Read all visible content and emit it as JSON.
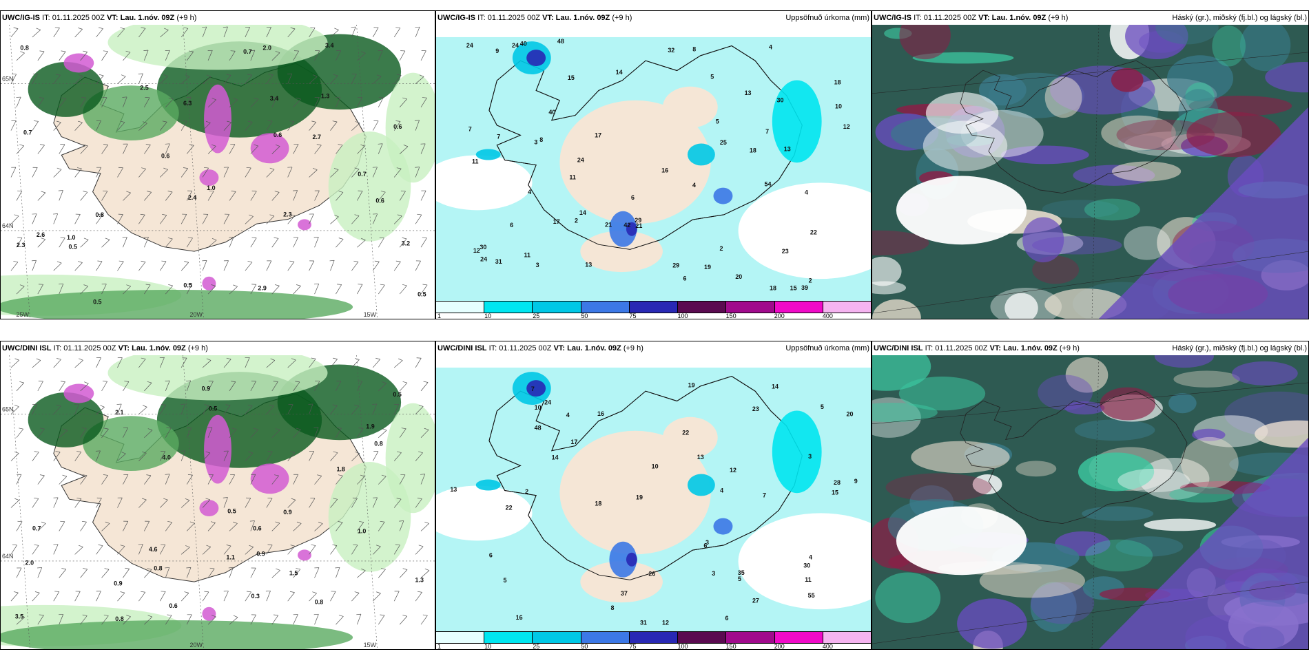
{
  "rows": [
    {
      "model": "UWC/IG-IS",
      "it_label": "IT:",
      "it_value": "01.11.2025 00Z",
      "vt_label": "VT:",
      "vt_value": "Lau. 1.nóv. 09Z",
      "lead": "(+9 h)",
      "precip_title": "Uppsöfnuð úrkoma (mm)",
      "cloud_title": "Háský (gr.), miðský (fj.bl.) og lágský (bl.)",
      "wind_values": [
        "0.6",
        "2.9",
        "3.4",
        "3.2",
        "2.7",
        "2.4",
        "0.7",
        "0.5",
        "0.5",
        "2.6",
        "2.5",
        "2.3",
        "1.3",
        "6.3",
        "3.4",
        "2.3",
        "0.7",
        "0.6",
        "0.5",
        "0.6",
        "2.0",
        "1.0",
        "0.8",
        "0.7",
        "0.6",
        "0.5",
        "0.8",
        "1.0"
      ],
      "precip_values": [
        "6",
        "3",
        "24",
        "54",
        "39",
        "15",
        "42",
        "11",
        "2",
        "18",
        "13",
        "32",
        "24",
        "18",
        "24",
        "2",
        "16",
        "12",
        "18",
        "17",
        "15",
        "8",
        "19",
        "17",
        "23",
        "25",
        "29",
        "30",
        "30",
        "12",
        "14",
        "21",
        "31",
        "22",
        "13",
        "7",
        "7",
        "40",
        "4",
        "13",
        "11",
        "2",
        "4",
        "20",
        "21",
        "24",
        "29",
        "40",
        "48",
        "5",
        "6",
        "7",
        "4",
        "4",
        "10",
        "5",
        "3",
        "9",
        "6",
        "11",
        "8",
        "14"
      ],
      "lat_labels": [
        "65N",
        "64N"
      ],
      "lon_labels": [
        "25W",
        "20W",
        "15W"
      ]
    },
    {
      "model": "UWC/DINI ISL",
      "it_label": "IT:",
      "it_value": "01.11.2025 00Z",
      "vt_label": "VT:",
      "vt_value": "Lau. 1.nóv. 09Z",
      "lead": "(+9 h)",
      "precip_title": "Uppsöfnuð úrkoma (mm)",
      "cloud_title": "Háský (gr.), miðský (fj.bl.) og lágský (bl.)",
      "wind_values": [
        "0.5",
        "0.9",
        "0.7",
        "1.1",
        "0.8",
        "0.5",
        "3.5",
        "4.0",
        "4.6",
        "2.1",
        "1.9",
        "1.8",
        "0.9",
        "0.3",
        "0.8",
        "0.6",
        "1.0",
        "2.0",
        "0.5",
        "1.3",
        "0.9",
        "0.6",
        "0.8",
        "0.8",
        "1.5",
        "0.9"
      ],
      "precip_values": [
        "3",
        "2",
        "3",
        "37",
        "55",
        "48",
        "17",
        "14",
        "12",
        "13",
        "14",
        "16",
        "12",
        "19",
        "19",
        "30",
        "22",
        "27",
        "26",
        "24",
        "18",
        "11",
        "10",
        "6",
        "16",
        "8",
        "4",
        "4",
        "5",
        "31",
        "20",
        "23",
        "35",
        "7",
        "22",
        "15",
        "13",
        "28",
        "10",
        "9",
        "7",
        "5",
        "6",
        "4",
        "5",
        "3",
        "6"
      ],
      "lat_labels": [
        "65N",
        "64N"
      ],
      "lon_labels": [
        "20W",
        "15W"
      ]
    }
  ],
  "legend": {
    "ticks": [
      "1",
      "10",
      "25",
      "50",
      "75",
      "100",
      "150",
      "200",
      "400"
    ],
    "colors": [
      "#e6ffff",
      "#00e6f0",
      "#00c8e6",
      "#3c78e6",
      "#2828b4",
      "#5a0a50",
      "#a00a8c",
      "#f00ac8",
      "#f5b4f0"
    ]
  },
  "palette": {
    "sea_wind": "#ffffff",
    "land": "#f5e6d6",
    "green_light": "#c8f0c0",
    "green_mid": "#5aaa60",
    "green_dark": "#0a5a1e",
    "magenta": "#d25ad2",
    "precip_sea": "#b4f5f5",
    "cloud_dark": "#2e5a52",
    "cloud_teal": "#3cc8a0",
    "cloud_purple": "#6a4cc0",
    "cloud_red": "#8c1e46"
  }
}
